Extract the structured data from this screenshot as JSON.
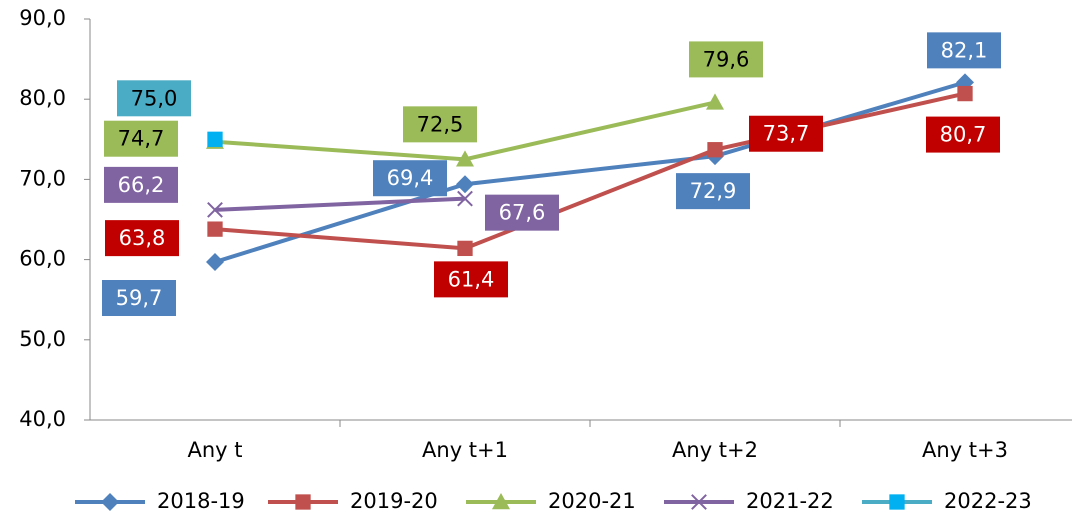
{
  "chart_data": {
    "type": "line",
    "categories": [
      "Any t",
      "Any t+1",
      "Any t+2",
      "Any t+3"
    ],
    "series": [
      {
        "name": "2018-19",
        "color": "#4f81bd",
        "label_color": "#4f81bd",
        "label_text_color": "#ffffff",
        "marker": "diamond",
        "values": [
          59.7,
          69.4,
          72.9,
          82.1
        ],
        "value_labels": [
          "59,7",
          "69,4",
          "72,9",
          "82,1"
        ]
      },
      {
        "name": "2019-20",
        "color": "#c0504d",
        "label_color": "#c00000",
        "label_text_color": "#ffffff",
        "marker": "square",
        "values": [
          63.8,
          61.4,
          73.7,
          80.7
        ],
        "value_labels": [
          "63,8",
          "61,4",
          "73,7",
          "80,7"
        ]
      },
      {
        "name": "2020-21",
        "color": "#9bbb59",
        "label_color": "#9bbb59",
        "label_text_color": "#000000",
        "marker": "triangle",
        "values": [
          74.7,
          72.5,
          79.6,
          null
        ],
        "value_labels": [
          "74,7",
          "72,5",
          "79,6",
          null
        ]
      },
      {
        "name": "2021-22",
        "color": "#8064a2",
        "label_color": "#8064a2",
        "label_text_color": "#ffffff",
        "marker": "x",
        "values": [
          66.2,
          67.6,
          null,
          null
        ],
        "value_labels": [
          "66,2",
          "67,6",
          null,
          null
        ]
      },
      {
        "name": "2022-23",
        "color": "#4bacc6",
        "label_color": "#4bacc6",
        "label_text_color": "#000000",
        "marker": "square",
        "values": [
          75.0,
          null,
          null,
          null
        ],
        "value_labels": [
          "75,0",
          null,
          null,
          null
        ]
      }
    ],
    "ylim": [
      40,
      90
    ],
    "yticks": [
      {
        "value": 40,
        "label": "40,0"
      },
      {
        "value": 50,
        "label": "50,0"
      },
      {
        "value": 60,
        "label": "60,0"
      },
      {
        "value": 70,
        "label": "70,0"
      },
      {
        "value": 80,
        "label": "80,0"
      },
      {
        "value": 90,
        "label": "90,0"
      }
    ],
    "grid": false,
    "legend": "bottom"
  }
}
